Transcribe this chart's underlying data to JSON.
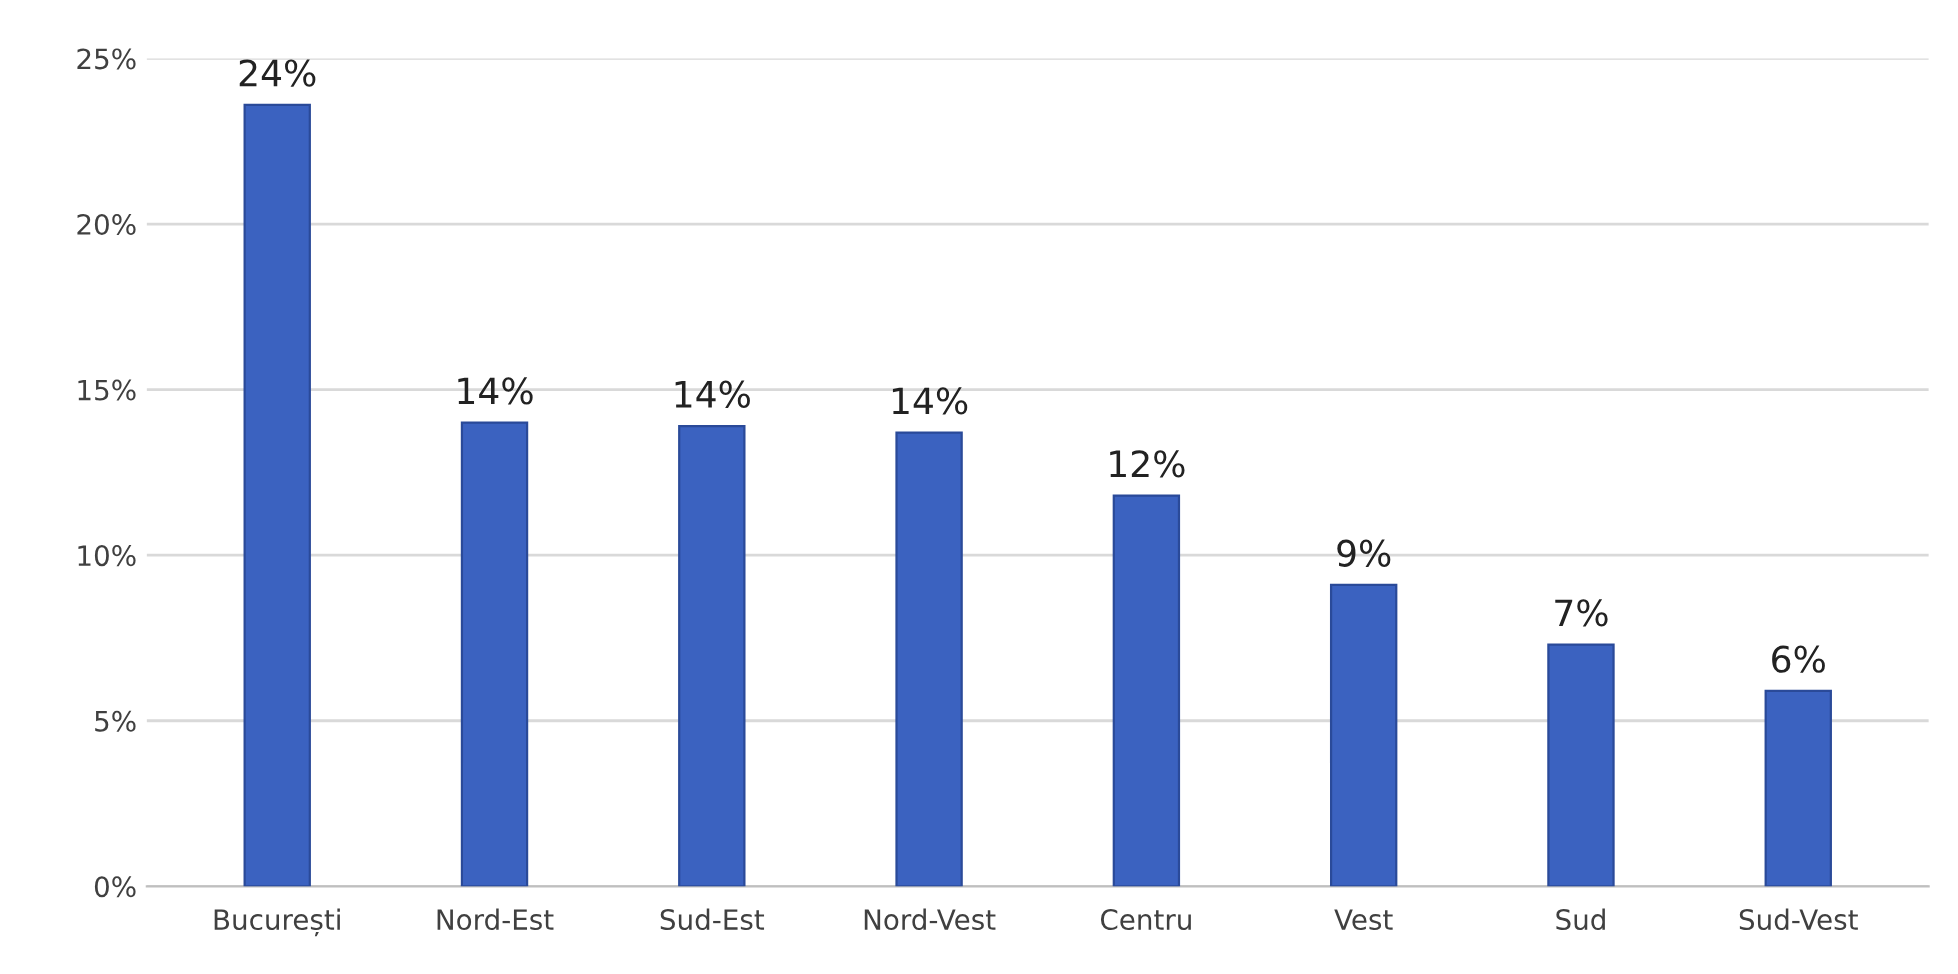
{
  "chart_data": {
    "type": "bar",
    "categories": [
      "București",
      "Nord-Est",
      "Sud-Est",
      "Nord-Vest",
      "Centru",
      "Vest",
      "Sud",
      "Sud-Vest"
    ],
    "values": [
      23.6,
      14.0,
      13.9,
      13.7,
      11.8,
      9.1,
      7.3,
      5.9
    ],
    "value_labels": [
      "24%",
      "14%",
      "14%",
      "14%",
      "12%",
      "9%",
      "7%",
      "6%"
    ],
    "color": "#3b62c0",
    "ylim": [
      0,
      25
    ],
    "yticks": [
      {
        "value": 0,
        "label": "0%"
      },
      {
        "value": 5,
        "label": "5%"
      },
      {
        "value": 10,
        "label": "10%"
      },
      {
        "value": 15,
        "label": "15%"
      },
      {
        "value": 20,
        "label": "20%"
      },
      {
        "value": 25,
        "label": "25%"
      }
    ],
    "grid": "y"
  }
}
